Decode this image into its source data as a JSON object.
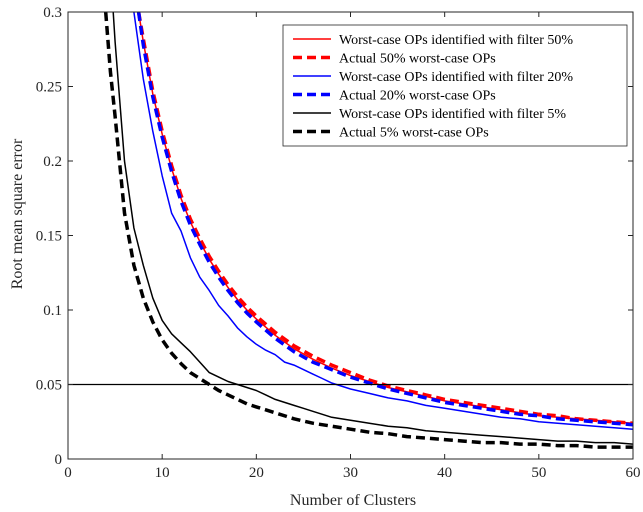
{
  "chart_data": {
    "type": "line",
    "xlabel": "Number of Clusters",
    "ylabel": "Root mean square error",
    "xlim": [
      0,
      60
    ],
    "ylim": [
      0,
      0.3
    ],
    "xticks": [
      0,
      10,
      20,
      30,
      40,
      50,
      60
    ],
    "xtick_labels": [
      "0",
      "10",
      "20",
      "30",
      "40",
      "50",
      "60"
    ],
    "yticks": [
      0,
      0.05,
      0.1,
      0.15,
      0.2,
      0.25,
      0.3
    ],
    "ytick_labels": [
      "0",
      "0.05",
      "0.1",
      "0.15",
      "0.2",
      "0.25",
      "0.3"
    ],
    "grid": false,
    "legend_position": "top-right",
    "reference_line": {
      "y": 0.05,
      "color": "#000000"
    },
    "series": [
      {
        "name": "Worst-case OPs identified with filter 50%",
        "color": "#ff0000",
        "style": "solid",
        "x": [
          7.5,
          8,
          9,
          10,
          11,
          12,
          13,
          14,
          15,
          16,
          17,
          18,
          19,
          20,
          22,
          24,
          26,
          28,
          30,
          32,
          34,
          36,
          38,
          40,
          42,
          44,
          46,
          48,
          50,
          52,
          54,
          56,
          58,
          60
        ],
        "y": [
          0.3,
          0.28,
          0.245,
          0.218,
          0.195,
          0.175,
          0.159,
          0.146,
          0.134,
          0.124,
          0.115,
          0.107,
          0.1,
          0.094,
          0.083,
          0.074,
          0.067,
          0.061,
          0.056,
          0.052,
          0.048,
          0.045,
          0.042,
          0.039,
          0.037,
          0.035,
          0.033,
          0.031,
          0.029,
          0.028,
          0.027,
          0.026,
          0.025,
          0.024
        ]
      },
      {
        "name": "Actual 50% worst-case OPs",
        "color": "#ff0000",
        "style": "dashed",
        "x": [
          7.5,
          8,
          9,
          10,
          11,
          12,
          13,
          14,
          15,
          16,
          17,
          18,
          19,
          20,
          22,
          24,
          26,
          28,
          30,
          32,
          34,
          36,
          38,
          40,
          42,
          44,
          46,
          48,
          50,
          52,
          54,
          56,
          58,
          60
        ],
        "y": [
          0.3,
          0.282,
          0.247,
          0.22,
          0.197,
          0.177,
          0.161,
          0.148,
          0.136,
          0.126,
          0.117,
          0.109,
          0.102,
          0.096,
          0.085,
          0.076,
          0.069,
          0.063,
          0.058,
          0.053,
          0.049,
          0.046,
          0.043,
          0.04,
          0.038,
          0.036,
          0.034,
          0.032,
          0.03,
          0.029,
          0.027,
          0.026,
          0.025,
          0.024
        ]
      },
      {
        "name": "Worst-case OPs identified with filter 20%",
        "color": "#0000ff",
        "style": "solid",
        "x": [
          7,
          8,
          9,
          10,
          11,
          12,
          13,
          14,
          15,
          16,
          17,
          18,
          19,
          20,
          21,
          22,
          23,
          24,
          25,
          26,
          27,
          28,
          30,
          32,
          34,
          36,
          38,
          40,
          42,
          44,
          46,
          48,
          50,
          52,
          54,
          56,
          58,
          60
        ],
        "y": [
          0.3,
          0.255,
          0.22,
          0.19,
          0.165,
          0.153,
          0.135,
          0.122,
          0.113,
          0.103,
          0.096,
          0.088,
          0.082,
          0.077,
          0.073,
          0.07,
          0.065,
          0.063,
          0.06,
          0.057,
          0.054,
          0.051,
          0.047,
          0.044,
          0.041,
          0.039,
          0.036,
          0.034,
          0.032,
          0.03,
          0.028,
          0.027,
          0.025,
          0.024,
          0.023,
          0.022,
          0.021,
          0.02
        ]
      },
      {
        "name": "Actual 20% worst-case OPs",
        "color": "#0000ff",
        "style": "dashed",
        "x": [
          7.5,
          8,
          9,
          10,
          11,
          12,
          13,
          14,
          15,
          16,
          17,
          18,
          19,
          20,
          22,
          24,
          26,
          28,
          30,
          32,
          34,
          36,
          38,
          40,
          42,
          44,
          46,
          48,
          50,
          52,
          54,
          56,
          58,
          60
        ],
        "y": [
          0.3,
          0.278,
          0.243,
          0.216,
          0.193,
          0.173,
          0.157,
          0.144,
          0.132,
          0.122,
          0.113,
          0.105,
          0.098,
          0.092,
          0.081,
          0.072,
          0.065,
          0.06,
          0.055,
          0.051,
          0.047,
          0.044,
          0.041,
          0.038,
          0.036,
          0.034,
          0.032,
          0.03,
          0.029,
          0.027,
          0.026,
          0.025,
          0.024,
          0.023
        ]
      },
      {
        "name": "Worst-case OPs identified with filter 5%",
        "color": "#000000",
        "style": "solid",
        "x": [
          4.8,
          5,
          6,
          7,
          8,
          9,
          10,
          11,
          12,
          13,
          14,
          15,
          16,
          17,
          18,
          19,
          20,
          21,
          22,
          23,
          24,
          25,
          26,
          27,
          28,
          30,
          32,
          34,
          36,
          38,
          40,
          42,
          44,
          46,
          48,
          50,
          52,
          54,
          56,
          58,
          60
        ],
        "y": [
          0.3,
          0.28,
          0.2,
          0.155,
          0.13,
          0.108,
          0.093,
          0.084,
          0.078,
          0.072,
          0.065,
          0.058,
          0.055,
          0.052,
          0.05,
          0.048,
          0.046,
          0.043,
          0.04,
          0.038,
          0.036,
          0.034,
          0.032,
          0.03,
          0.028,
          0.026,
          0.024,
          0.022,
          0.021,
          0.019,
          0.018,
          0.017,
          0.016,
          0.015,
          0.014,
          0.013,
          0.012,
          0.012,
          0.011,
          0.011,
          0.01
        ]
      },
      {
        "name": "Actual 5% worst-case OPs",
        "color": "#000000",
        "style": "dashed",
        "x": [
          4,
          4.5,
          5,
          6,
          7,
          8,
          9,
          10,
          11,
          12,
          13,
          14,
          15,
          16,
          17,
          18,
          19,
          20,
          22,
          24,
          26,
          28,
          30,
          32,
          34,
          36,
          38,
          40,
          42,
          44,
          46,
          48,
          50,
          52,
          54,
          56,
          58,
          60
        ],
        "y": [
          0.3,
          0.26,
          0.23,
          0.165,
          0.13,
          0.108,
          0.092,
          0.08,
          0.071,
          0.064,
          0.058,
          0.054,
          0.05,
          0.046,
          0.043,
          0.04,
          0.037,
          0.035,
          0.031,
          0.027,
          0.024,
          0.022,
          0.02,
          0.018,
          0.017,
          0.015,
          0.014,
          0.013,
          0.012,
          0.011,
          0.011,
          0.01,
          0.01,
          0.009,
          0.009,
          0.008,
          0.008,
          0.008
        ]
      }
    ]
  }
}
